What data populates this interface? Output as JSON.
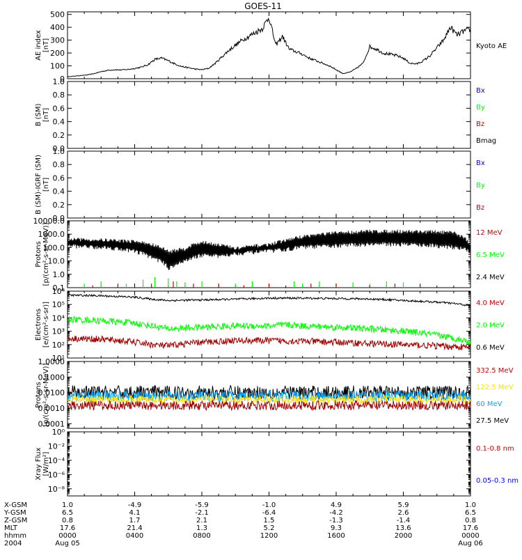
{
  "title": "GOES-11",
  "colors": {
    "black": "#000000",
    "blue": "#0000ff",
    "green": "#00ff00",
    "red": "#c80000",
    "darkred": "#a00000",
    "yellow": "#ffe000",
    "cyan": "#00a8ff",
    "frame": "#000000"
  },
  "chart_data": [
    {
      "type": "line",
      "id": "ae",
      "ylabel_lines": [
        "AE index",
        "[nT]"
      ],
      "ylim": [
        0,
        520
      ],
      "yscale": "linear",
      "yticks": [
        0,
        100,
        200,
        300,
        400,
        500
      ],
      "ytick_labels": [
        "0",
        "100",
        "200",
        "300",
        "400",
        "500"
      ],
      "legend": [
        {
          "text": "Kyoto AE",
          "color": "#000000"
        }
      ],
      "series": [
        {
          "name": "Kyoto AE",
          "color": "#000000",
          "style": "line",
          "x": [
            0,
            0.4,
            0.8,
            1.2,
            1.6,
            2.0,
            2.4,
            2.8,
            3.2,
            3.6,
            4.0,
            4.4,
            4.8,
            5.2,
            5.6,
            6.0,
            6.4,
            6.8,
            7.2,
            7.6,
            8.0,
            8.4,
            8.8,
            9.2,
            9.6,
            10.0,
            10.4,
            10.8,
            11.2,
            11.6,
            12.0,
            12.4,
            12.8,
            13.2,
            13.6,
            14.0,
            14.4,
            14.8,
            15.2,
            15.6,
            16.0,
            16.4,
            16.8,
            17.2,
            17.6,
            18.0,
            18.4,
            18.8,
            19.2,
            19.6,
            20.0,
            20.4,
            20.8,
            21.2,
            21.6,
            22.0,
            22.4,
            22.8,
            23.2,
            23.6,
            24.0
          ],
          "y": [
            15,
            20,
            25,
            30,
            40,
            55,
            65,
            70,
            68,
            72,
            80,
            90,
            110,
            150,
            160,
            140,
            115,
            95,
            85,
            75,
            70,
            80,
            120,
            170,
            220,
            260,
            300,
            330,
            360,
            390,
            480,
            260,
            330,
            230,
            210,
            190,
            160,
            140,
            120,
            100,
            70,
            40,
            50,
            80,
            120,
            250,
            230,
            200,
            190,
            180,
            160,
            120,
            115,
            140,
            180,
            240,
            300,
            400,
            340,
            370,
            380
          ]
        }
      ]
    },
    {
      "type": "line",
      "id": "bsm",
      "ylabel_lines": [
        "B (SM)",
        "[nT]"
      ],
      "ylim": [
        0,
        1
      ],
      "yscale": "linear",
      "yticks": [
        0,
        0.2,
        0.4,
        0.6,
        0.8,
        1.0
      ],
      "ytick_labels": [
        "0.0",
        "0.2",
        "0.4",
        "0.6",
        "0.8",
        "1.0"
      ],
      "legend": [
        {
          "text": "Bx",
          "color": "#0000ff"
        },
        {
          "text": "By",
          "color": "#00ff00"
        },
        {
          "text": "Bz",
          "color": "#c80000"
        },
        {
          "text": "Bmag",
          "color": "#000000"
        }
      ],
      "series": []
    },
    {
      "type": "line",
      "id": "bigrf",
      "ylabel_lines": [
        "B (SM)-IGRF (SM)",
        "[nT]"
      ],
      "ylim": [
        0,
        1
      ],
      "yscale": "linear",
      "yticks": [
        0,
        0.2,
        0.4,
        0.6,
        0.8,
        1.0
      ],
      "ytick_labels": [
        "0.0",
        "0.2",
        "0.4",
        "0.6",
        "0.8",
        "1.0"
      ],
      "legend": [
        {
          "text": "Bx",
          "color": "#0000ff"
        },
        {
          "text": "By",
          "color": "#00ff00"
        },
        {
          "text": "Bz",
          "color": "#c80000"
        }
      ],
      "series": []
    },
    {
      "type": "line",
      "id": "protons_low",
      "ylabel_lines": [
        "Protons",
        "[p/(cm²-s-sr-MeV)]"
      ],
      "ylim": [
        0.1,
        10000
      ],
      "yscale": "log",
      "yticks": [
        0.1,
        1,
        10,
        100,
        1000,
        10000
      ],
      "ytick_labels": [
        "0.1",
        "1.0",
        "10.0",
        "100.0",
        "1000.0",
        "10000.0"
      ],
      "legend": [
        {
          "text": "12 MeV",
          "color": "#c80000"
        },
        {
          "text": "6.5 MeV",
          "color": "#00ff00"
        },
        {
          "text": "2.4 MeV",
          "color": "#000000"
        }
      ],
      "series": [
        {
          "name": "2.4 MeV",
          "color": "#000000",
          "style": "oscillating",
          "x": [
            0,
            2,
            4,
            5,
            6,
            7,
            8,
            9,
            10,
            11,
            12,
            13,
            14,
            16,
            18,
            20,
            22,
            23,
            24
          ],
          "lo": [
            150,
            120,
            60,
            20,
            3,
            10,
            30,
            25,
            40,
            50,
            60,
            80,
            120,
            150,
            200,
            200,
            150,
            120,
            60
          ],
          "hi": [
            500,
            450,
            350,
            200,
            60,
            100,
            300,
            200,
            100,
            150,
            200,
            400,
            800,
            1500,
            2000,
            2000,
            1800,
            1500,
            150
          ]
        },
        {
          "name": "6.5 MeV",
          "color": "#00ff00",
          "style": "spikes",
          "x": [
            1,
            2,
            3.5,
            4.5,
            5.2,
            6,
            6.5,
            7,
            8,
            9,
            10,
            11,
            12,
            13.5,
            14,
            15,
            16,
            17,
            18,
            19,
            20
          ],
          "y": [
            0.2,
            0.3,
            0.2,
            0.4,
            0.6,
            0.5,
            0.3,
            0.25,
            0.3,
            0.2,
            0.2,
            0.3,
            0.2,
            0.3,
            0.2,
            0.3,
            0.2,
            0.25,
            0.2,
            0.3,
            0.25
          ]
        },
        {
          "name": "12 MeV",
          "color": "#c80000",
          "style": "spikes",
          "x": [
            1.5,
            3,
            5,
            6.3,
            7.5,
            9,
            10.5,
            12,
            14.5,
            16,
            18,
            19.5,
            21
          ],
          "y": [
            0.15,
            0.2,
            0.2,
            0.3,
            0.2,
            0.2,
            0.15,
            0.2,
            0.2,
            0.2,
            0.15,
            0.2,
            0.2
          ]
        }
      ]
    },
    {
      "type": "line",
      "id": "electrons",
      "ylabel_lines": [
        "Electrons",
        "[e/(cm²-s-sr)]"
      ],
      "ylim": [
        10,
        1000000
      ],
      "yscale": "log",
      "yticks": [
        10,
        100,
        1000,
        10000,
        100000,
        1000000
      ],
      "ytick_labels": [
        "10¹",
        "10²",
        "10³",
        "10⁴",
        "10⁵",
        "10⁶"
      ],
      "legend": [
        {
          "text": "4.0 MeV",
          "color": "#c80000"
        },
        {
          "text": "2.0 MeV",
          "color": "#00ff00"
        },
        {
          "text": "0.6 MeV",
          "color": "#000000"
        }
      ],
      "series": [
        {
          "name": "0.6 MeV",
          "color": "#000000",
          "style": "noisy",
          "x": [
            0,
            2,
            4,
            5,
            6,
            8,
            10,
            12,
            14,
            16,
            18,
            20,
            22,
            23,
            24
          ],
          "y": [
            500000,
            450000,
            350000,
            250000,
            200000,
            220000,
            250000,
            300000,
            300000,
            280000,
            260000,
            200000,
            150000,
            120000,
            80000
          ],
          "noise": 0.15
        },
        {
          "name": "2.0 MeV",
          "color": "#00ff00",
          "style": "noisy",
          "x": [
            0,
            2,
            4,
            5,
            6,
            8,
            10,
            12,
            13,
            14,
            16,
            18,
            20,
            22,
            23,
            24
          ],
          "y": [
            8000,
            6000,
            4000,
            2500,
            1500,
            2000,
            2500,
            2500,
            3000,
            2500,
            2000,
            1500,
            1000,
            500,
            300,
            150
          ],
          "noise": 0.5
        },
        {
          "name": "4.0 MeV",
          "color": "#a00000",
          "style": "noisy",
          "x": [
            0,
            2,
            4,
            5,
            6,
            8,
            10,
            12,
            14,
            16,
            18,
            20,
            22,
            24
          ],
          "y": [
            300,
            250,
            150,
            100,
            80,
            150,
            200,
            200,
            180,
            150,
            120,
            100,
            80,
            60
          ],
          "noise": 0.5
        }
      ]
    },
    {
      "type": "line",
      "id": "protons_high",
      "ylabel_lines": [
        "Protons",
        "[p/(cm²-s-sr-MeV)]"
      ],
      "ylim": [
        5e-05,
        1
      ],
      "yscale": "log",
      "yticks": [
        0.0001,
        0.001,
        0.01,
        0.1,
        1
      ],
      "ytick_labels": [
        "0.0001",
        "0.0010",
        "0.0100",
        "0.1000",
        "1.0000"
      ],
      "legend": [
        {
          "text": "332.5 MeV",
          "color": "#c80000"
        },
        {
          "text": "122.5 MeV",
          "color": "#ffe000"
        },
        {
          "text": "60 MeV",
          "color": "#00a8ff"
        },
        {
          "text": "27.5 MeV",
          "color": "#000000"
        }
      ],
      "series": [
        {
          "name": "27.5 MeV",
          "color": "#000000",
          "style": "noisy",
          "x": [
            0,
            24
          ],
          "y": [
            0.01,
            0.01
          ],
          "noise": 0.9
        },
        {
          "name": "60 MeV",
          "color": "#00a8ff",
          "style": "noisy",
          "x": [
            0,
            24
          ],
          "y": [
            0.006,
            0.006
          ],
          "noise": 0.7
        },
        {
          "name": "122.5 MeV",
          "color": "#ffe000",
          "style": "noisy",
          "x": [
            0,
            24
          ],
          "y": [
            0.0035,
            0.0035
          ],
          "noise": 0.5
        },
        {
          "name": "332.5 MeV",
          "color": "#a00000",
          "style": "noisy",
          "x": [
            0,
            24
          ],
          "y": [
            0.0015,
            0.0015
          ],
          "noise": 0.6
        }
      ]
    },
    {
      "type": "line",
      "id": "xray",
      "ylabel_lines": [
        "Xray Flux",
        "[W/m²]"
      ],
      "ylim": [
        1e-09,
        1
      ],
      "yscale": "log",
      "yticks": [
        1e-08,
        1e-06,
        0.0001,
        0.01,
        1
      ],
      "ytick_labels": [
        "10⁻⁸",
        "10⁻⁶",
        "10⁻⁴",
        "10⁻²",
        "10⁰"
      ],
      "legend": [
        {
          "text": "0.1-0.8 nm",
          "color": "#c80000"
        },
        {
          "text": "0.05-0.3 nm",
          "color": "#0000ff"
        }
      ],
      "series": []
    }
  ],
  "x_axis": {
    "xlim": [
      0,
      24
    ],
    "row_labels": [
      "X-GSM",
      "Y-GSM",
      "Z-GSM",
      "MLT",
      "hhmm",
      "2004"
    ],
    "columns": [
      {
        "x": 0,
        "vals": [
          "1.0",
          "6.5",
          "0.8",
          "17.6",
          "0000",
          "Aug 05"
        ]
      },
      {
        "x": 4,
        "vals": [
          "-4.9",
          "4.1",
          "1.7",
          "21.4",
          "0400",
          ""
        ]
      },
      {
        "x": 8,
        "vals": [
          "-5.9",
          "-2.1",
          "2.1",
          "1.3",
          "0800",
          ""
        ]
      },
      {
        "x": 12,
        "vals": [
          "-1.0",
          "-6.4",
          "1.5",
          "5.2",
          "1200",
          ""
        ]
      },
      {
        "x": 16,
        "vals": [
          "4.9",
          "-4.2",
          "-1.3",
          "9.3",
          "1600",
          ""
        ]
      },
      {
        "x": 20,
        "vals": [
          "5.9",
          "2.6",
          "-1.4",
          "13.6",
          "2000",
          ""
        ]
      },
      {
        "x": 24,
        "vals": [
          "1.0",
          "6.5",
          "0.8",
          "17.6",
          "0000",
          "Aug 06"
        ]
      }
    ]
  }
}
